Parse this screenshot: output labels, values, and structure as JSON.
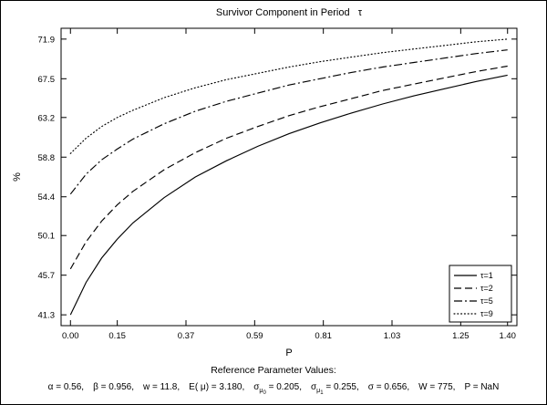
{
  "chart_data": {
    "type": "line",
    "title": "Survivor Component in Period   τ",
    "xlabel": "P",
    "ylabel": "%",
    "xlim": [
      -0.03,
      1.43
    ],
    "ylim": [
      40.1,
      73.1
    ],
    "x_ticks": [
      0.0,
      0.15,
      0.37,
      0.59,
      0.81,
      1.03,
      1.25,
      1.4
    ],
    "x_tick_labels": [
      "0.00",
      "0.15",
      "0.37",
      "0.59",
      "0.81",
      "1.03",
      "1.25",
      "1.40"
    ],
    "y_ticks": [
      41.3,
      45.7,
      50.1,
      54.4,
      58.8,
      63.2,
      67.5,
      71.9
    ],
    "y_tick_labels": [
      "41.3",
      "45.7",
      "50.1",
      "54.4",
      "58.8",
      "63.2",
      "67.5",
      "71.9"
    ],
    "grid": false,
    "legend_position": "bottom-right",
    "x": [
      0,
      0.05,
      0.1,
      0.15,
      0.2,
      0.3,
      0.4,
      0.5,
      0.6,
      0.7,
      0.8,
      0.9,
      1.0,
      1.1,
      1.2,
      1.3,
      1.4
    ],
    "series": [
      {
        "name": "τ=1",
        "style": "solid",
        "values": [
          41.3,
          44.9,
          47.6,
          49.7,
          51.5,
          54.3,
          56.6,
          58.4,
          60.0,
          61.4,
          62.6,
          63.7,
          64.7,
          65.6,
          66.4,
          67.2,
          67.9
        ]
      },
      {
        "name": "τ=2",
        "style": "dashed",
        "values": [
          46.4,
          49.4,
          51.7,
          53.5,
          55.0,
          57.4,
          59.3,
          60.9,
          62.2,
          63.4,
          64.4,
          65.3,
          66.2,
          66.9,
          67.6,
          68.3,
          68.9
        ]
      },
      {
        "name": "τ=5",
        "style": "dashdot",
        "values": [
          54.7,
          56.9,
          58.5,
          59.7,
          60.8,
          62.5,
          63.9,
          65.0,
          65.9,
          66.8,
          67.5,
          68.2,
          68.8,
          69.3,
          69.8,
          70.3,
          70.7
        ]
      },
      {
        "name": "τ=9",
        "style": "dotted",
        "values": [
          59.2,
          60.9,
          62.2,
          63.2,
          64.0,
          65.4,
          66.5,
          67.4,
          68.1,
          68.8,
          69.4,
          69.9,
          70.4,
          70.8,
          71.2,
          71.6,
          71.9
        ]
      }
    ]
  },
  "footer": {
    "heading": "Reference Parameter Values:",
    "separator": ",  ",
    "parameters": [
      {
        "base": "α = 0.56"
      },
      {
        "base": "β = 0.956"
      },
      {
        "base": "w = 11.8"
      },
      {
        "base": "E( μ) = 3.180"
      },
      {
        "base": "σ",
        "sub": "μ",
        "subsub": "0",
        "rest": " = 0.205"
      },
      {
        "base": "σ",
        "sub": "μ",
        "subsub": "1",
        "rest": " = 0.255"
      },
      {
        "base": "σ = 0.656"
      },
      {
        "base": "W = 775"
      },
      {
        "base": "P = NaN"
      }
    ]
  }
}
